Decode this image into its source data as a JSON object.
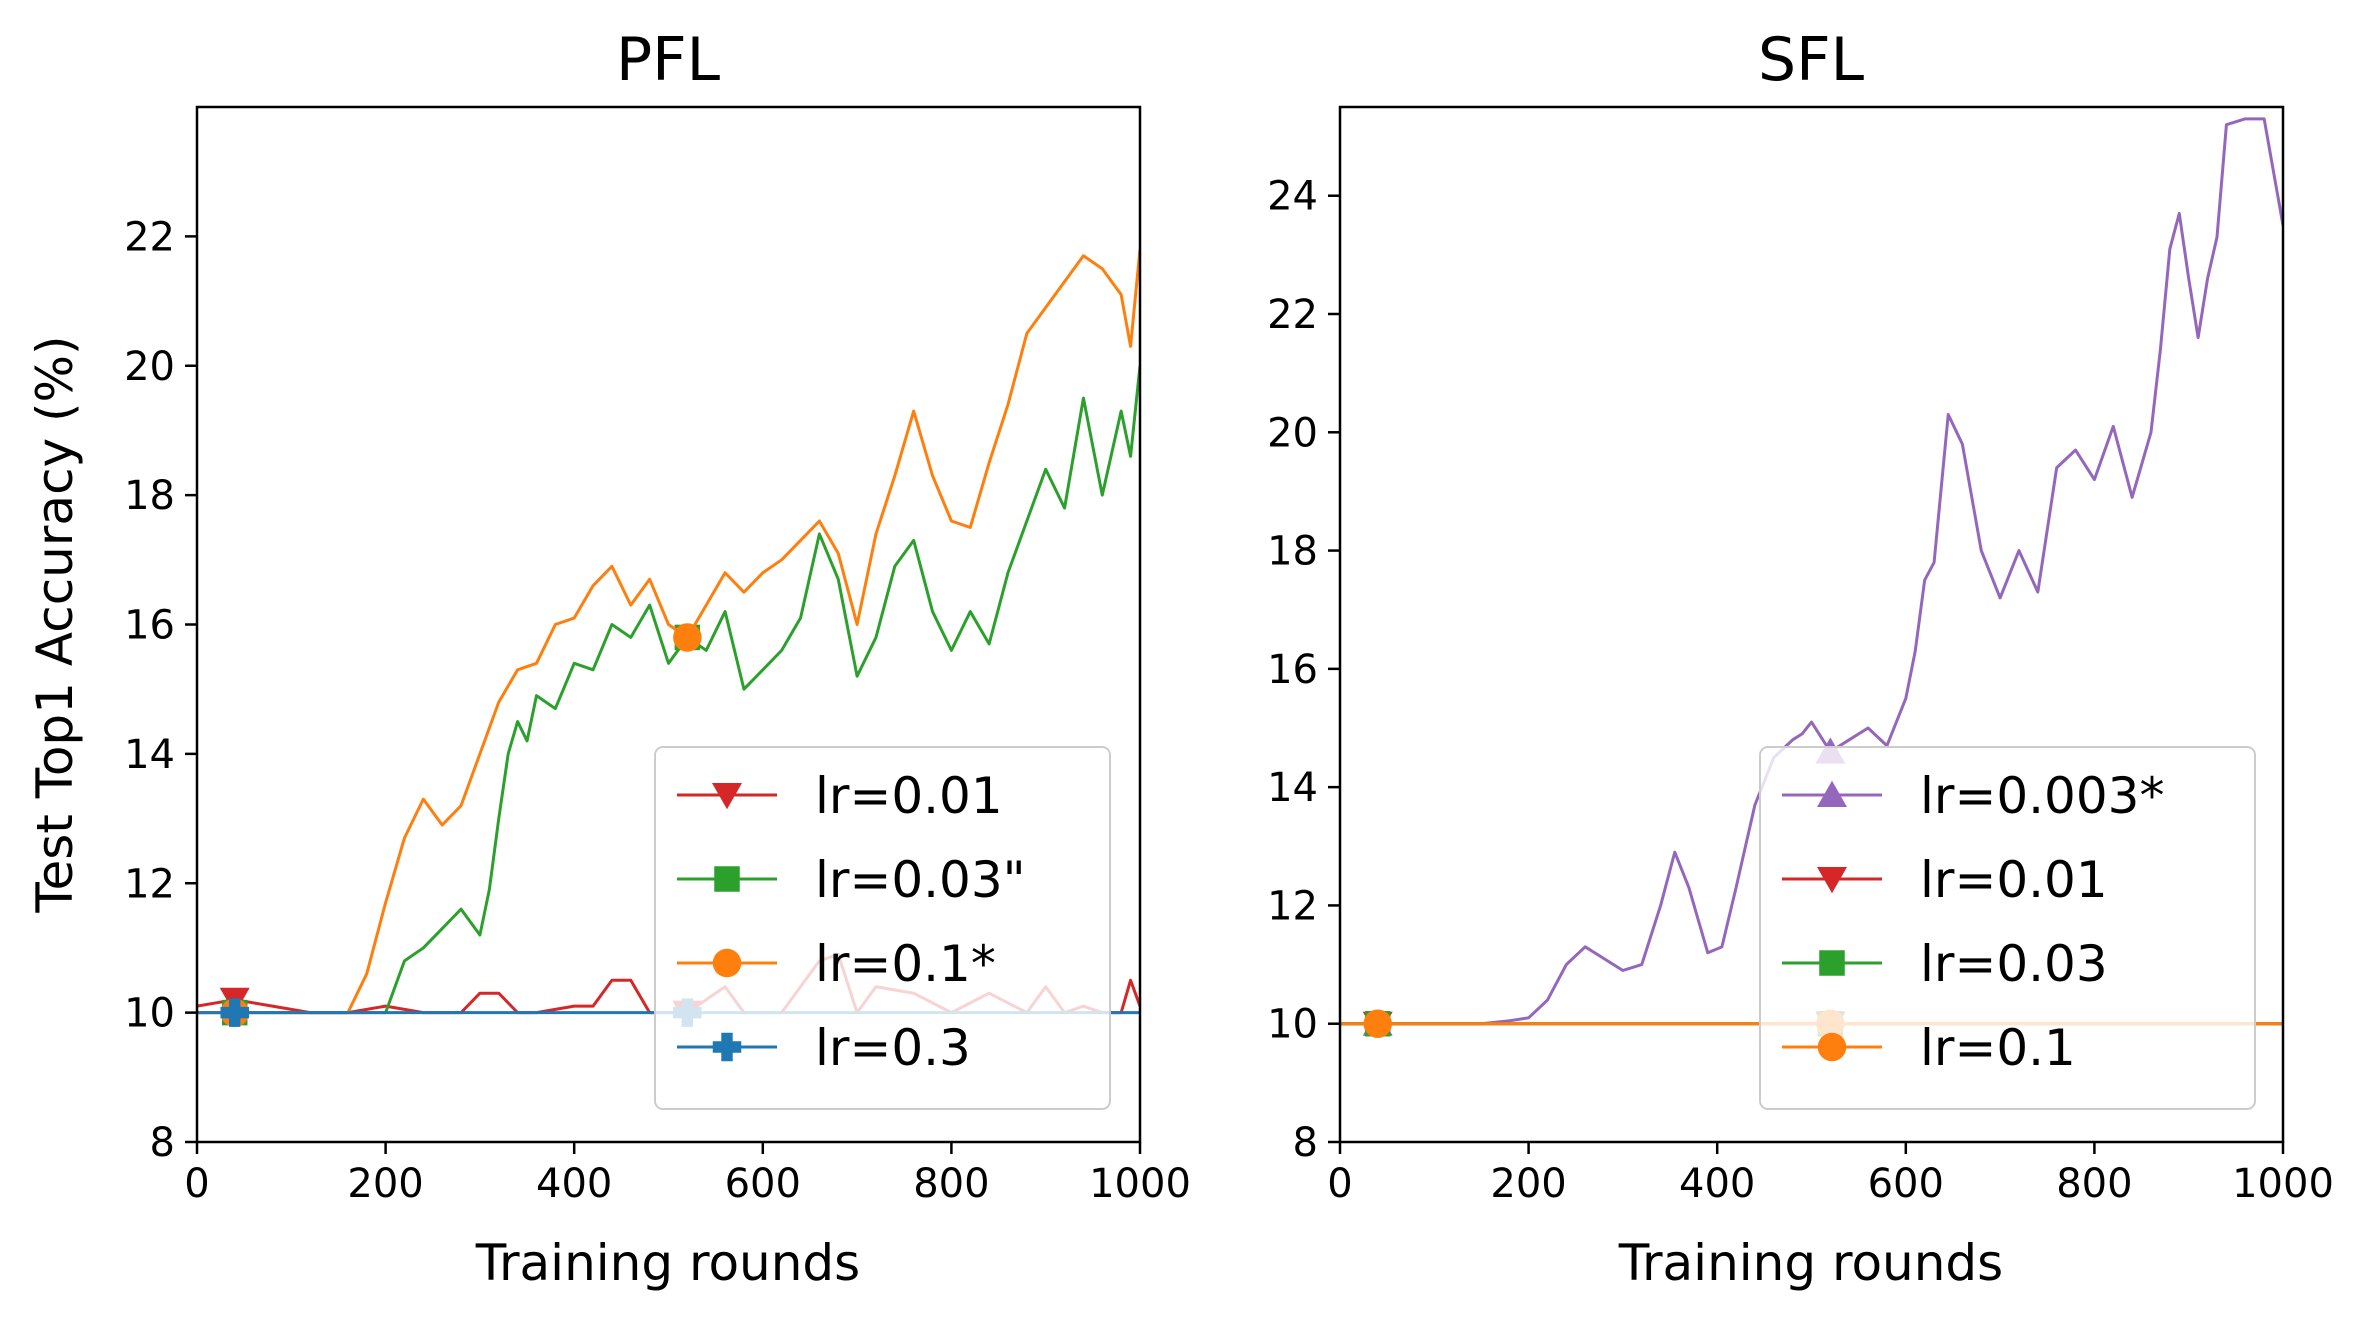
{
  "chart_data": [
    {
      "type": "line",
      "title": "PFL",
      "xlabel": "Training rounds",
      "ylabel": "Test Top1 Accuracy (%)",
      "xlim": [
        0,
        1000
      ],
      "ylim": [
        8,
        24
      ],
      "xticks": [
        "0",
        "200",
        "400",
        "600",
        "800",
        "1000"
      ],
      "yticks": [
        "8",
        "10",
        "12",
        "14",
        "16",
        "18",
        "20",
        "22"
      ],
      "grid": false,
      "legend_position": "lower-right",
      "series": [
        {
          "name": "lr=0.01",
          "color": "#d62728",
          "marker": "triangle-down",
          "x": [
            0,
            40,
            80,
            120,
            160,
            200,
            240,
            280,
            300,
            320,
            340,
            360,
            400,
            420,
            440,
            460,
            480,
            520,
            540,
            560,
            580,
            600,
            620,
            660,
            680,
            700,
            720,
            760,
            800,
            840,
            880,
            900,
            920,
            940,
            960,
            980,
            990,
            1000
          ],
          "y": [
            10.1,
            10.2,
            10.1,
            10.0,
            10.0,
            10.1,
            10.0,
            10.0,
            10.3,
            10.3,
            10.0,
            10.0,
            10.1,
            10.1,
            10.5,
            10.5,
            10.0,
            10.0,
            10.2,
            10.4,
            10.0,
            10.0,
            10.0,
            10.8,
            10.9,
            10.0,
            10.4,
            10.3,
            10.0,
            10.3,
            10.0,
            10.4,
            10.0,
            10.1,
            10.0,
            10.0,
            10.5,
            10.1
          ]
        },
        {
          "name": "lr=0.03\"",
          "color": "#2ca02c",
          "marker": "square",
          "x": [
            0,
            40,
            80,
            120,
            160,
            200,
            220,
            240,
            260,
            280,
            300,
            310,
            320,
            330,
            340,
            350,
            360,
            380,
            400,
            420,
            440,
            460,
            480,
            500,
            520,
            540,
            560,
            580,
            600,
            620,
            640,
            660,
            680,
            700,
            720,
            740,
            760,
            780,
            800,
            820,
            840,
            860,
            880,
            900,
            920,
            940,
            960,
            980,
            990,
            1000
          ],
          "y": [
            10.0,
            10.0,
            10.0,
            10.0,
            10.0,
            10.0,
            10.8,
            11.0,
            11.3,
            11.6,
            11.2,
            11.9,
            13.0,
            14.0,
            14.5,
            14.2,
            14.9,
            14.7,
            15.4,
            15.3,
            16.0,
            15.8,
            16.3,
            15.4,
            15.8,
            15.6,
            16.2,
            15.0,
            15.3,
            15.6,
            16.1,
            17.4,
            16.7,
            15.2,
            15.8,
            16.9,
            17.3,
            16.2,
            15.6,
            16.2,
            15.7,
            16.8,
            17.6,
            18.4,
            17.8,
            19.5,
            18.0,
            19.3,
            18.6,
            20.0
          ]
        },
        {
          "name": "lr=0.1*",
          "color": "#ff7f0e",
          "marker": "circle",
          "x": [
            0,
            40,
            80,
            120,
            160,
            180,
            200,
            220,
            240,
            260,
            280,
            300,
            320,
            340,
            360,
            380,
            400,
            420,
            440,
            460,
            480,
            500,
            520,
            540,
            560,
            580,
            600,
            620,
            640,
            660,
            680,
            700,
            720,
            740,
            760,
            780,
            800,
            820,
            840,
            860,
            880,
            900,
            920,
            940,
            960,
            980,
            990,
            1000
          ],
          "y": [
            10.0,
            10.0,
            10.0,
            10.0,
            10.0,
            10.6,
            11.7,
            12.7,
            13.3,
            12.9,
            13.2,
            14.0,
            14.8,
            15.3,
            15.4,
            16.0,
            16.1,
            16.6,
            16.9,
            16.3,
            16.7,
            16.0,
            15.8,
            16.3,
            16.8,
            16.5,
            16.8,
            17.0,
            17.3,
            17.6,
            17.1,
            16.0,
            17.4,
            18.3,
            19.3,
            18.3,
            17.6,
            17.5,
            18.5,
            19.4,
            20.5,
            20.9,
            21.3,
            21.7,
            21.5,
            21.1,
            20.3,
            21.8
          ]
        },
        {
          "name": "lr=0.3",
          "color": "#1f77b4",
          "marker": "plus-filled",
          "x": [
            0,
            1000
          ],
          "y": [
            10.0,
            10.0
          ]
        }
      ]
    },
    {
      "type": "line",
      "title": "SFL",
      "xlabel": "Training rounds",
      "ylabel": "",
      "xlim": [
        0,
        1000
      ],
      "ylim": [
        8,
        25.5
      ],
      "xticks": [
        "0",
        "200",
        "400",
        "600",
        "800",
        "1000"
      ],
      "yticks": [
        "8",
        "10",
        "12",
        "14",
        "16",
        "18",
        "20",
        "22",
        "24"
      ],
      "grid": false,
      "legend_position": "lower-right",
      "series": [
        {
          "name": "lr=0.003*",
          "color": "#9467bd",
          "marker": "triangle-up",
          "x": [
            0,
            50,
            100,
            150,
            180,
            200,
            220,
            240,
            260,
            280,
            300,
            320,
            340,
            355,
            370,
            390,
            405,
            420,
            440,
            460,
            480,
            490,
            500,
            520,
            540,
            560,
            580,
            600,
            610,
            620,
            630,
            645,
            660,
            680,
            700,
            720,
            740,
            760,
            780,
            800,
            820,
            840,
            860,
            870,
            880,
            890,
            900,
            910,
            920,
            930,
            940,
            960,
            980,
            1000
          ],
          "y": [
            10.0,
            10.0,
            10.0,
            10.0,
            10.05,
            10.1,
            10.4,
            11.0,
            11.3,
            11.1,
            10.9,
            11.0,
            12.0,
            12.9,
            12.3,
            11.2,
            11.3,
            12.3,
            13.7,
            14.5,
            14.8,
            14.9,
            15.1,
            14.6,
            14.8,
            15.0,
            14.7,
            15.5,
            16.3,
            17.5,
            17.8,
            20.3,
            19.8,
            18.0,
            17.2,
            18.0,
            17.3,
            19.4,
            19.7,
            19.2,
            20.1,
            18.9,
            20.0,
            21.4,
            23.1,
            23.7,
            22.6,
            21.6,
            22.6,
            23.3,
            25.2,
            25.3,
            25.3,
            23.5
          ]
        },
        {
          "name": "lr=0.01",
          "color": "#d62728",
          "marker": "triangle-down",
          "x": [
            0,
            1000
          ],
          "y": [
            10.0,
            10.0
          ]
        },
        {
          "name": "lr=0.03",
          "color": "#2ca02c",
          "marker": "square",
          "x": [
            0,
            1000
          ],
          "y": [
            10.0,
            10.0
          ]
        },
        {
          "name": "lr=0.1",
          "color": "#ff7f0e",
          "marker": "circle",
          "x": [
            0,
            1000
          ],
          "y": [
            10.0,
            10.0
          ]
        }
      ]
    }
  ]
}
